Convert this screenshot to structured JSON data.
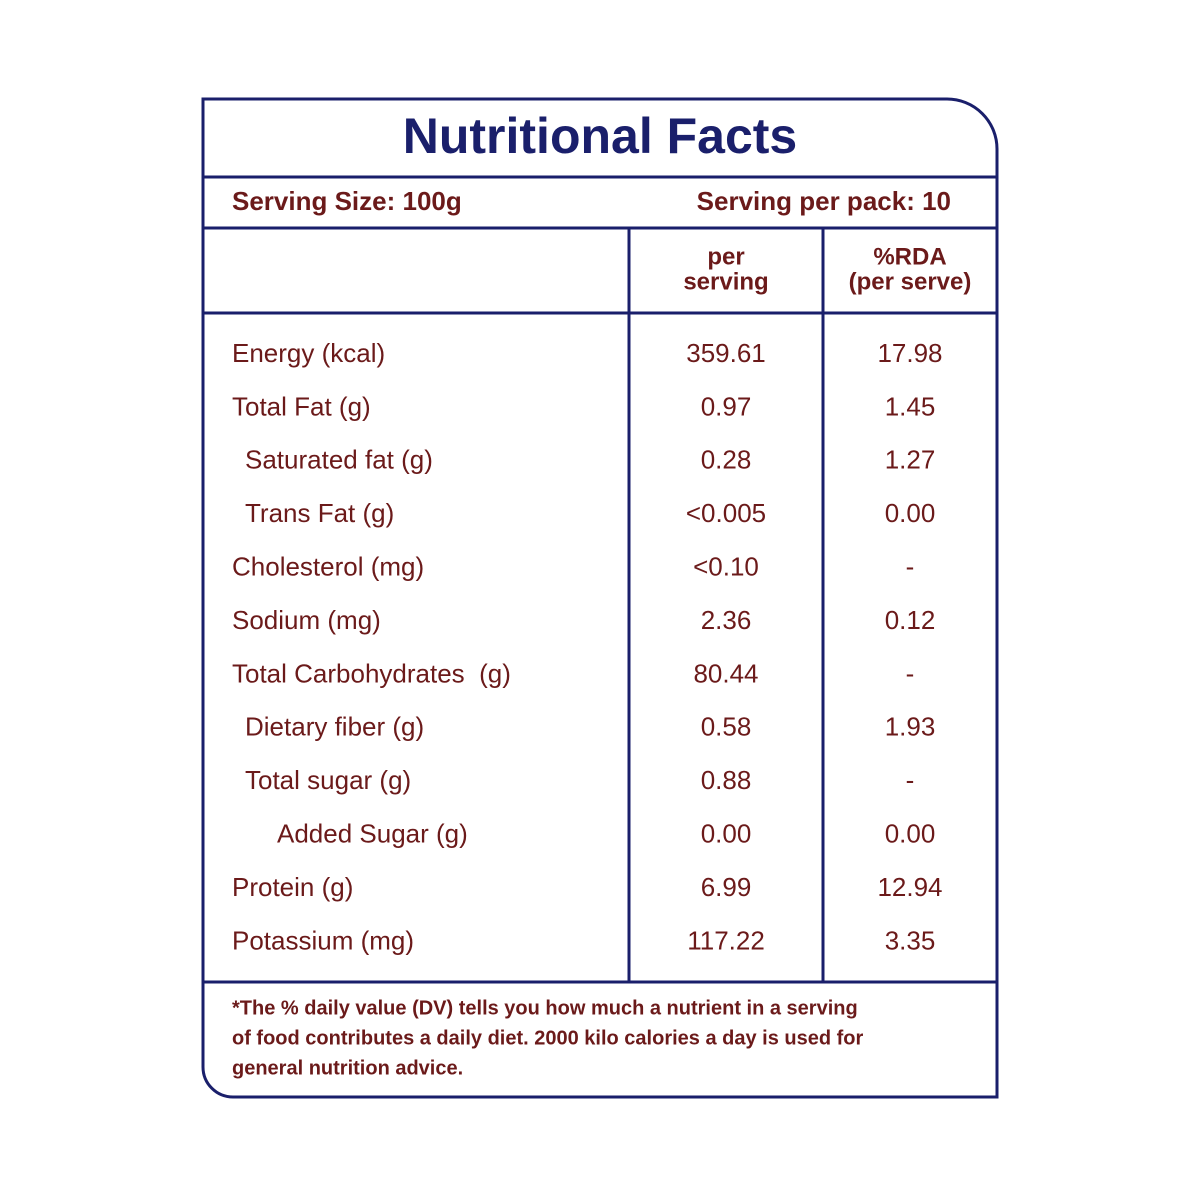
{
  "header": {
    "title": "Nutritional Facts"
  },
  "serving": {
    "size": "Serving Size: 100g",
    "per_pack": "Serving per pack: 10"
  },
  "table": {
    "columns": [
      [
        "per",
        "serving"
      ],
      [
        "%RDA",
        "(per serve)"
      ]
    ],
    "rows": [
      [
        "Energy (kcal)",
        "359.61",
        "17.98"
      ],
      [
        "Total Fat (g)",
        "0.97",
        "1.45"
      ],
      [
        "Saturated fat (g)",
        "0.28",
        "1.27"
      ],
      [
        "Trans Fat (g)",
        "<0.005",
        "0.00"
      ],
      [
        "Cholesterol (mg)",
        "<0.10",
        "-"
      ],
      [
        "Sodium (mg)",
        "2.36",
        "0.12"
      ],
      [
        "Total Carbohydrates  (g)",
        "80.44",
        "-"
      ],
      [
        "Dietary fiber (g)",
        "0.58",
        "1.93"
      ],
      [
        "Total sugar (g)",
        "0.88",
        "-"
      ],
      [
        "Added Sugar (g)",
        "0.00",
        "0.00"
      ],
      [
        "Protein (g)",
        "6.99",
        "12.94"
      ],
      [
        "Potassium (mg)",
        "117.22",
        "3.35"
      ]
    ]
  },
  "footnote": [
    "*The % daily value (DV) tells you how much a nutrient in a serving",
    "of food contributes a daily diet. 2000 kilo calories a day is used for",
    "general nutrition advice."
  ]
}
